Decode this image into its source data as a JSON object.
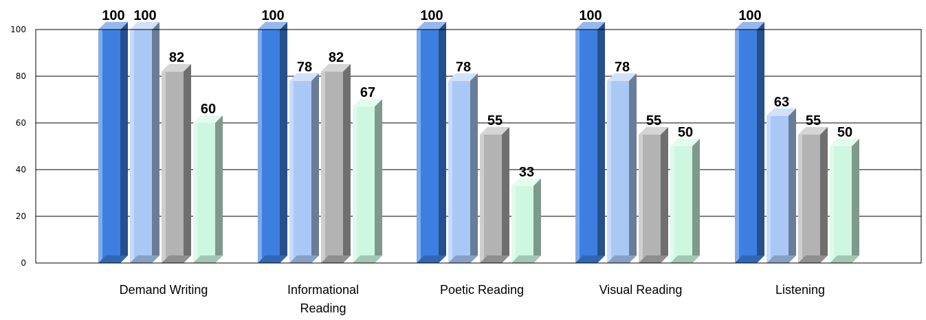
{
  "chart_data": {
    "type": "bar",
    "style": "3d",
    "categories": [
      "Demand Writing",
      "Informational Reading",
      "Poetic Reading",
      "Visual Reading",
      "Listening"
    ],
    "category_lines": [
      [
        "Demand Writing"
      ],
      [
        "Informational",
        "Reading"
      ],
      [
        "Poetic Reading"
      ],
      [
        "Visual Reading"
      ],
      [
        "Listening"
      ]
    ],
    "series": [
      {
        "values": [
          100,
          100,
          100,
          100,
          100
        ],
        "color": "#3d7fe0"
      },
      {
        "values": [
          100,
          78,
          78,
          78,
          63
        ],
        "color": "#a9c8f5"
      },
      {
        "values": [
          82,
          82,
          55,
          55,
          55
        ],
        "color": "#b3b3b3"
      },
      {
        "values": [
          60,
          67,
          33,
          50,
          50
        ],
        "color": "#cdf7e1"
      }
    ],
    "ylim": [
      0,
      100
    ],
    "yticks": [
      0,
      20,
      40,
      60,
      80,
      100
    ],
    "grid": true,
    "legend": "none"
  }
}
